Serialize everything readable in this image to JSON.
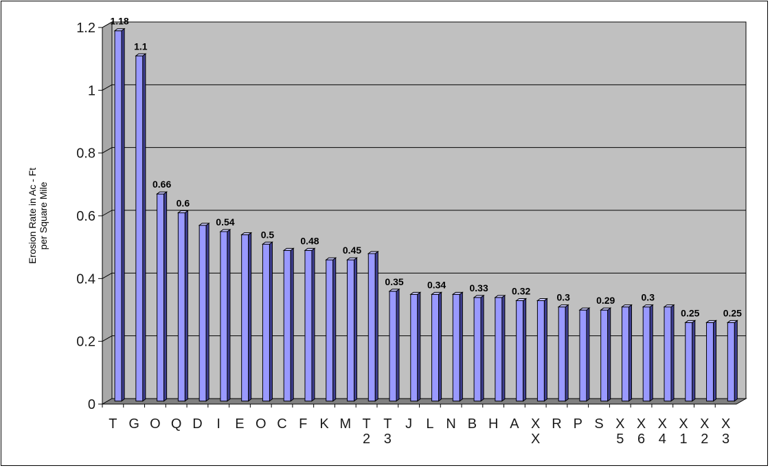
{
  "chart_data": {
    "type": "bar",
    "categories": [
      [
        "T"
      ],
      [
        "G"
      ],
      [
        "O"
      ],
      [
        "Q"
      ],
      [
        "D"
      ],
      [
        "I"
      ],
      [
        "E"
      ],
      [
        "O"
      ],
      [
        "C"
      ],
      [
        "F"
      ],
      [
        "K"
      ],
      [
        "M"
      ],
      [
        "T",
        "2"
      ],
      [
        "T",
        "3"
      ],
      [
        "J"
      ],
      [
        "L"
      ],
      [
        "N"
      ],
      [
        "B"
      ],
      [
        "H"
      ],
      [
        "A"
      ],
      [
        "X",
        "X"
      ],
      [
        "R"
      ],
      [
        "P"
      ],
      [
        "S"
      ],
      [
        "X",
        "5"
      ],
      [
        "X",
        "6"
      ],
      [
        "X",
        "4"
      ],
      [
        "X",
        "1"
      ],
      [
        "X",
        "2"
      ],
      [
        "X",
        "3"
      ]
    ],
    "values": [
      1.18,
      1.1,
      0.66,
      0.6,
      0.56,
      0.54,
      0.53,
      0.5,
      0.48,
      0.48,
      0.45,
      0.45,
      0.47,
      0.35,
      0.34,
      0.34,
      0.34,
      0.33,
      0.33,
      0.32,
      0.32,
      0.3,
      0.29,
      0.29,
      0.3,
      0.3,
      0.3,
      0.25,
      0.25,
      0.25
    ],
    "data_labels": [
      "1.18",
      "1.1",
      "0.66",
      "0.6",
      "",
      "0.54",
      "",
      "0.5",
      "",
      "0.48",
      "",
      "0.45",
      "",
      "0.35",
      "",
      "0.34",
      "",
      "0.33",
      "",
      "0.32",
      "",
      "0.3",
      "",
      "0.29",
      "",
      "0.3",
      "",
      "0.25",
      "",
      "0.25"
    ],
    "ylabel": [
      "Erosion Rate in Ac - Ft",
      "per Square Mile"
    ],
    "ylim": [
      0,
      1.2
    ],
    "yticks": [
      0,
      0.2,
      0.4,
      0.6,
      0.8,
      1,
      1.2
    ],
    "ytick_labels": [
      "0",
      "0.2",
      "0.4",
      "0.6",
      "0.8",
      "1",
      "1.2"
    ],
    "grid": true,
    "colors": {
      "bar_front": "#9999ff",
      "bar_side": "#3f3f92",
      "bar_top": "#c8c8ff",
      "plot_background": "#c0c0c0",
      "floor": "#808080",
      "gridline": "#000000"
    }
  }
}
